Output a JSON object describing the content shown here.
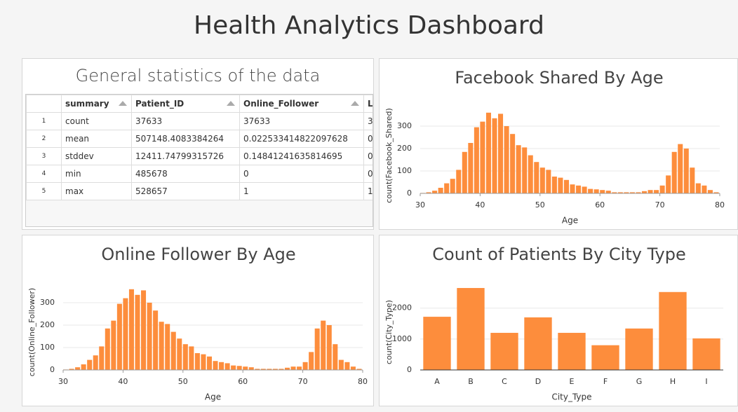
{
  "title": "Health Analytics Dashboard",
  "table": {
    "title": "General statistics of the data",
    "columns": [
      "",
      "summary",
      "Patient_ID",
      "Online_Follower",
      "L"
    ],
    "rows": [
      [
        "1",
        "count",
        "37633",
        "37633",
        "3"
      ],
      [
        "2",
        "mean",
        "507148.4083384264",
        "0.022533414822097628",
        "0"
      ],
      [
        "3",
        "stddev",
        "12411.74799315726",
        "0.14841241635814695",
        "0"
      ],
      [
        "4",
        "min",
        "485678",
        "0",
        "0"
      ],
      [
        "5",
        "max",
        "528657",
        "1",
        "1"
      ]
    ]
  },
  "chart_data": [
    {
      "type": "histogram",
      "title": "Facebook Shared By Age",
      "x_label": "Age",
      "y_label": "count(Facebook_Shared)",
      "color": "#fd8d3c",
      "bins": [
        30,
        31,
        32,
        33,
        34,
        35,
        36,
        37,
        38,
        39,
        40,
        41,
        42,
        43,
        44,
        45,
        46,
        47,
        48,
        49,
        50,
        51,
        52,
        53,
        54,
        55,
        56,
        57,
        58,
        59,
        60,
        61,
        62,
        63,
        64,
        65,
        66,
        67,
        68,
        69,
        70,
        71,
        72,
        73,
        74,
        75,
        76,
        77,
        78,
        79,
        80
      ],
      "values": [
        2,
        5,
        12,
        25,
        45,
        65,
        105,
        185,
        225,
        295,
        320,
        360,
        335,
        355,
        300,
        265,
        215,
        205,
        170,
        140,
        115,
        105,
        75,
        70,
        60,
        40,
        35,
        30,
        20,
        18,
        15,
        12,
        5,
        5,
        5,
        5,
        5,
        10,
        15,
        15,
        35,
        80,
        185,
        220,
        200,
        115,
        45,
        35,
        15,
        5
      ],
      "xlim": [
        30,
        80
      ],
      "xticks": [
        30,
        40,
        50,
        60,
        70,
        80
      ],
      "ylim": [
        0,
        400
      ],
      "yticks": [
        0,
        100,
        200,
        300
      ],
      "grid": true
    },
    {
      "type": "histogram",
      "title": "Online Follower By Age",
      "x_label": "Age",
      "y_label": "count(Online_Follower)",
      "color": "#fd8d3c",
      "bins": [
        30,
        31,
        32,
        33,
        34,
        35,
        36,
        37,
        38,
        39,
        40,
        41,
        42,
        43,
        44,
        45,
        46,
        47,
        48,
        49,
        50,
        51,
        52,
        53,
        54,
        55,
        56,
        57,
        58,
        59,
        60,
        61,
        62,
        63,
        64,
        65,
        66,
        67,
        68,
        69,
        70,
        71,
        72,
        73,
        74,
        75,
        76,
        77,
        78,
        79,
        80
      ],
      "values": [
        2,
        5,
        12,
        25,
        45,
        65,
        105,
        185,
        220,
        295,
        320,
        360,
        335,
        355,
        300,
        265,
        215,
        205,
        170,
        140,
        115,
        105,
        75,
        70,
        60,
        40,
        35,
        30,
        20,
        18,
        15,
        12,
        5,
        5,
        5,
        5,
        5,
        10,
        15,
        15,
        35,
        80,
        185,
        220,
        200,
        115,
        45,
        35,
        15,
        5
      ],
      "xlim": [
        30,
        80
      ],
      "xticks": [
        30,
        40,
        50,
        60,
        70,
        80
      ],
      "ylim": [
        0,
        400
      ],
      "yticks": [
        0,
        100,
        200,
        300
      ],
      "grid": true
    },
    {
      "type": "bar",
      "title": "Count of Patients By City Type",
      "x_label": "City_Type",
      "y_label": "count(City_Type)",
      "color": "#fd8d3c",
      "categories": [
        "A",
        "B",
        "C",
        "D",
        "E",
        "F",
        "G",
        "H",
        "I"
      ],
      "values": [
        1720,
        2650,
        1200,
        1700,
        1200,
        800,
        1340,
        2520,
        1020
      ],
      "ylim": [
        0,
        2900
      ],
      "yticks": [
        0,
        1000,
        2000
      ],
      "grid": true
    }
  ]
}
